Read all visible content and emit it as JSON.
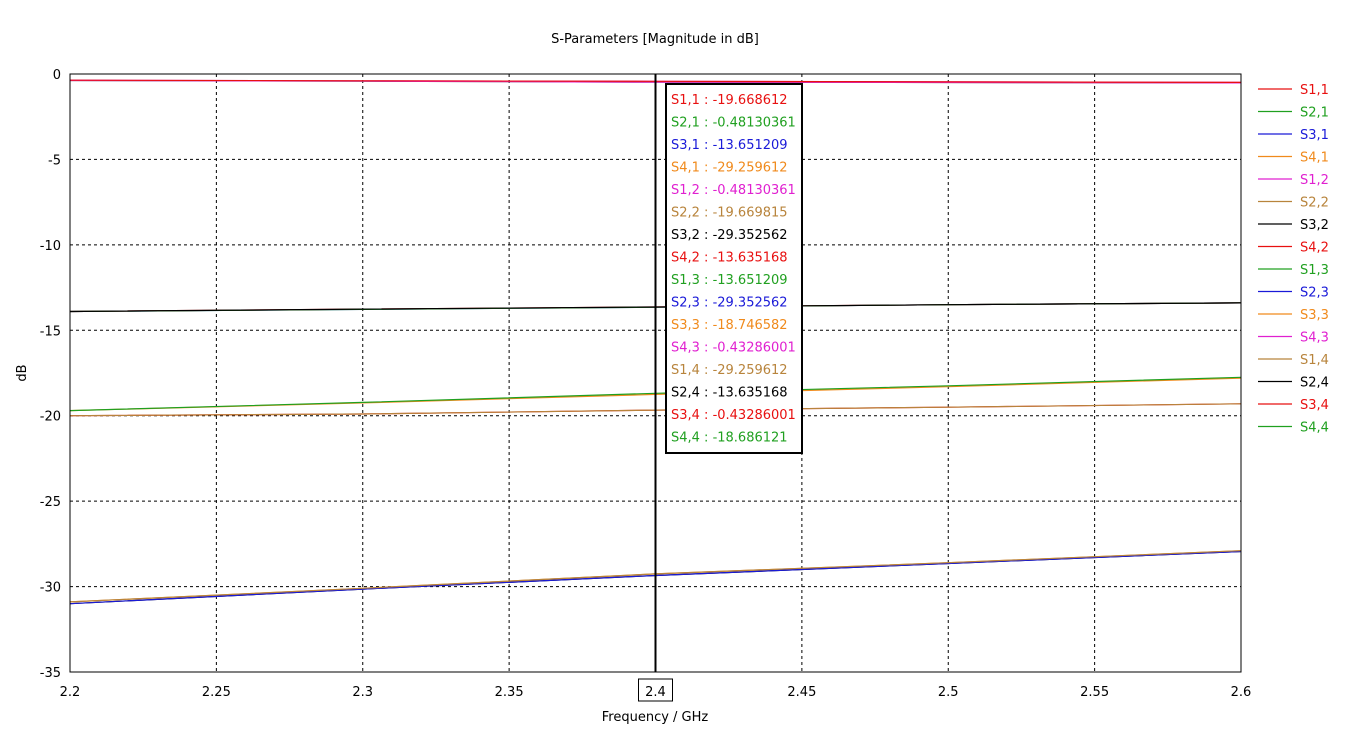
{
  "chart_data": {
    "type": "line",
    "title": "S-Parameters [Magnitude in dB]",
    "xlabel": "Frequency / GHz",
    "ylabel": "dB",
    "xlim": [
      2.2,
      2.6
    ],
    "ylim": [
      -35,
      0
    ],
    "x_ticks": [
      "2.2",
      "2.25",
      "2.3",
      "2.35",
      "2.4",
      "2.45",
      "2.5",
      "2.55",
      "2.6"
    ],
    "y_ticks": [
      "0",
      "-5",
      "-10",
      "-15",
      "-20",
      "-25",
      "-30",
      "-35"
    ],
    "grid": true,
    "legend_position": "right",
    "marker": {
      "x": 2.4,
      "label": "2.4"
    },
    "series": [
      {
        "name": "S1,1",
        "color": "#e81010",
        "x": [
          2.2,
          2.3,
          2.4,
          2.5,
          2.6
        ],
        "values": [
          -20.0,
          -19.9,
          -19.67,
          -19.5,
          -19.3
        ]
      },
      {
        "name": "S2,1",
        "color": "#20a020",
        "x": [
          2.2,
          2.3,
          2.4,
          2.5,
          2.6
        ],
        "values": [
          -0.38,
          -0.42,
          -0.48,
          -0.5,
          -0.52
        ]
      },
      {
        "name": "S3,1",
        "color": "#1a1ad8",
        "x": [
          2.2,
          2.3,
          2.4,
          2.5,
          2.6
        ],
        "values": [
          -13.9,
          -13.78,
          -13.65,
          -13.5,
          -13.4
        ]
      },
      {
        "name": "S4,1",
        "color": "#f08a1c",
        "x": [
          2.2,
          2.3,
          2.4,
          2.5,
          2.6
        ],
        "values": [
          -30.9,
          -30.1,
          -29.26,
          -28.6,
          -27.9
        ]
      },
      {
        "name": "S1,2",
        "color": "#e020d0",
        "x": [
          2.2,
          2.3,
          2.4,
          2.5,
          2.6
        ],
        "values": [
          -0.38,
          -0.42,
          -0.48,
          -0.5,
          -0.52
        ]
      },
      {
        "name": "S2,2",
        "color": "#b8843c",
        "x": [
          2.2,
          2.3,
          2.4,
          2.5,
          2.6
        ],
        "values": [
          -20.0,
          -19.9,
          -19.67,
          -19.5,
          -19.3
        ]
      },
      {
        "name": "S3,2",
        "color": "#000000",
        "x": [
          2.2,
          2.3,
          2.4,
          2.5,
          2.6
        ],
        "values": [
          -31.0,
          -30.15,
          -29.35,
          -28.65,
          -27.95
        ]
      },
      {
        "name": "S4,2",
        "color": "#e81010",
        "x": [
          2.2,
          2.3,
          2.4,
          2.5,
          2.6
        ],
        "values": [
          -13.9,
          -13.76,
          -13.64,
          -13.5,
          -13.4
        ]
      },
      {
        "name": "S1,3",
        "color": "#20a020",
        "x": [
          2.2,
          2.3,
          2.4,
          2.5,
          2.6
        ],
        "values": [
          -13.9,
          -13.78,
          -13.65,
          -13.5,
          -13.4
        ]
      },
      {
        "name": "S2,3",
        "color": "#1a1ad8",
        "x": [
          2.2,
          2.3,
          2.4,
          2.5,
          2.6
        ],
        "values": [
          -31.0,
          -30.15,
          -29.35,
          -28.65,
          -27.95
        ]
      },
      {
        "name": "S3,3",
        "color": "#f08a1c",
        "x": [
          2.2,
          2.3,
          2.4,
          2.5,
          2.6
        ],
        "values": [
          -19.7,
          -19.25,
          -18.75,
          -18.3,
          -17.8
        ]
      },
      {
        "name": "S4,3",
        "color": "#e020d0",
        "x": [
          2.2,
          2.3,
          2.4,
          2.5,
          2.6
        ],
        "values": [
          -0.36,
          -0.4,
          -0.43,
          -0.46,
          -0.49
        ]
      },
      {
        "name": "S1,4",
        "color": "#b8843c",
        "x": [
          2.2,
          2.3,
          2.4,
          2.5,
          2.6
        ],
        "values": [
          -30.9,
          -30.1,
          -29.26,
          -28.6,
          -27.9
        ]
      },
      {
        "name": "S2,4",
        "color": "#000000",
        "x": [
          2.2,
          2.3,
          2.4,
          2.5,
          2.6
        ],
        "values": [
          -13.9,
          -13.76,
          -13.64,
          -13.5,
          -13.4
        ]
      },
      {
        "name": "S3,4",
        "color": "#e81010",
        "x": [
          2.2,
          2.3,
          2.4,
          2.5,
          2.6
        ],
        "values": [
          -0.36,
          -0.4,
          -0.43,
          -0.46,
          -0.49
        ]
      },
      {
        "name": "S4,4",
        "color": "#20a020",
        "x": [
          2.2,
          2.3,
          2.4,
          2.5,
          2.6
        ],
        "values": [
          -19.7,
          -19.22,
          -18.69,
          -18.25,
          -17.75
        ]
      }
    ],
    "annotations": [
      {
        "text": "S1,1 : -19.668612",
        "color": "#e81010"
      },
      {
        "text": "S2,1 : -0.48130361",
        "color": "#20a020"
      },
      {
        "text": "S3,1 : -13.651209",
        "color": "#1a1ad8"
      },
      {
        "text": "S4,1 : -29.259612",
        "color": "#f08a1c"
      },
      {
        "text": "S1,2 : -0.48130361",
        "color": "#e020d0"
      },
      {
        "text": "S2,2 : -19.669815",
        "color": "#b8843c"
      },
      {
        "text": "S3,2 : -29.352562",
        "color": "#000000"
      },
      {
        "text": "S4,2 : -13.635168",
        "color": "#e81010"
      },
      {
        "text": "S1,3 : -13.651209",
        "color": "#20a020"
      },
      {
        "text": "S2,3 : -29.352562",
        "color": "#1a1ad8"
      },
      {
        "text": "S3,3 : -18.746582",
        "color": "#f08a1c"
      },
      {
        "text": "S4,3 : -0.43286001",
        "color": "#e020d0"
      },
      {
        "text": "S1,4 : -29.259612",
        "color": "#b8843c"
      },
      {
        "text": "S2,4 : -13.635168",
        "color": "#000000"
      },
      {
        "text": "S3,4 : -0.43286001",
        "color": "#e81010"
      },
      {
        "text": "S4,4 : -18.686121",
        "color": "#20a020"
      }
    ]
  }
}
